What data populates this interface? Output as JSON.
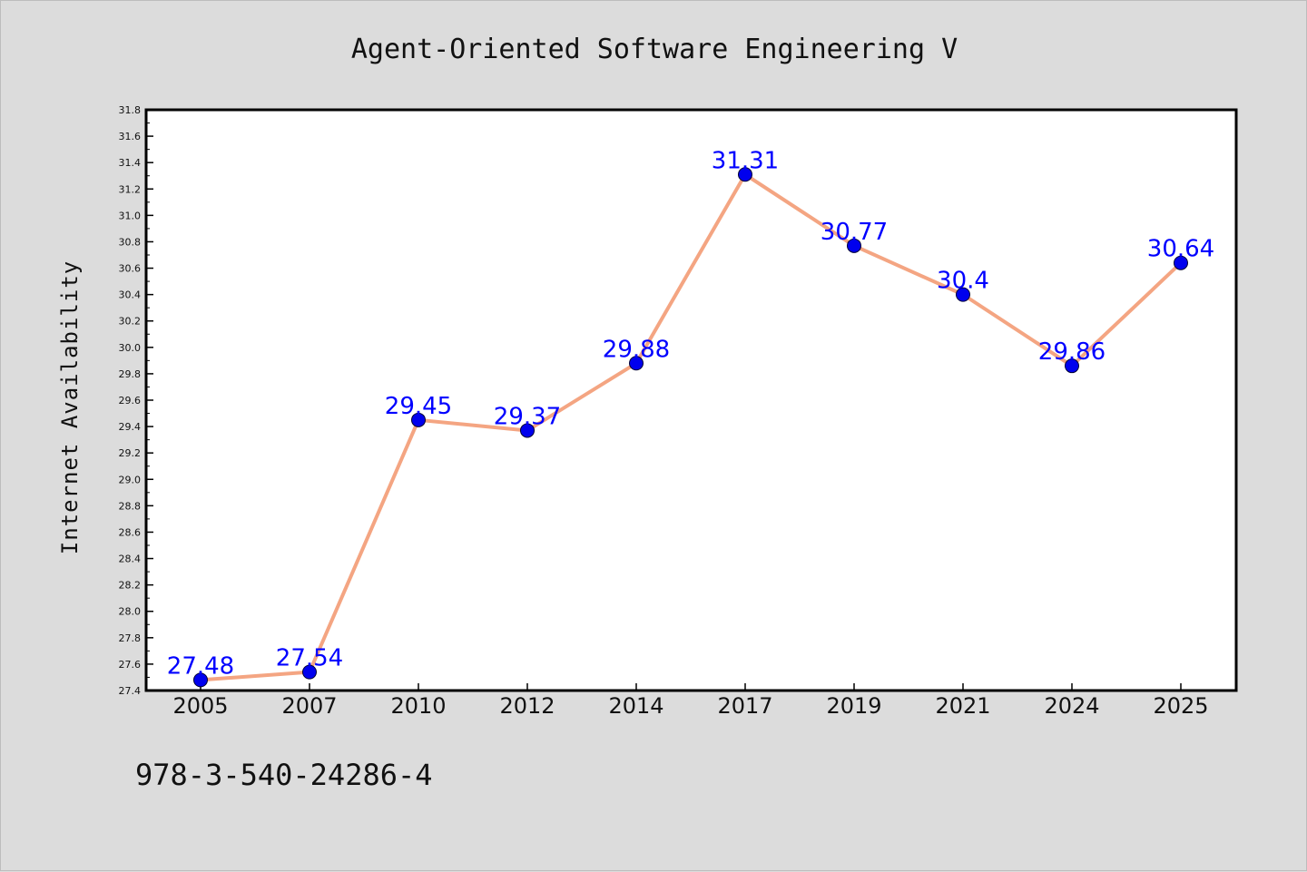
{
  "chart_data": {
    "type": "line",
    "title": "Agent-Oriented Software Engineering V",
    "xlabel": "",
    "ylabel": "Internet Availability",
    "categories": [
      "2005",
      "2007",
      "2010",
      "2012",
      "2014",
      "2017",
      "2019",
      "2021",
      "2024",
      "2025"
    ],
    "series": [
      {
        "values": [
          27.48,
          27.54,
          29.45,
          29.37,
          29.88,
          31.31,
          30.77,
          30.4,
          29.86,
          30.64
        ],
        "data_labels": [
          "27.48",
          "27.54",
          "29.45",
          "29.37",
          "29.88",
          "31.31",
          "30.77",
          "30.4",
          "29.86",
          "30.64"
        ],
        "line_color": "#f4a582",
        "marker_color": "#0000ee",
        "label_color": "#0000ff"
      }
    ],
    "ylim": [
      27.4,
      31.8
    ],
    "yticks": [
      "27.4",
      "27.6",
      "27.8",
      "28.0",
      "28.2",
      "28.4",
      "28.6",
      "28.8",
      "29.0",
      "29.2",
      "29.4",
      "29.6",
      "29.8",
      "30.0",
      "30.2",
      "30.4",
      "30.6",
      "30.8",
      "31.0",
      "31.2",
      "31.4",
      "31.6",
      "31.8"
    ],
    "grid": false,
    "legend": "none",
    "background_color": "#dcdcdc",
    "plot_background": "#ffffff"
  },
  "footer_text": "978-3-540-24286-4"
}
